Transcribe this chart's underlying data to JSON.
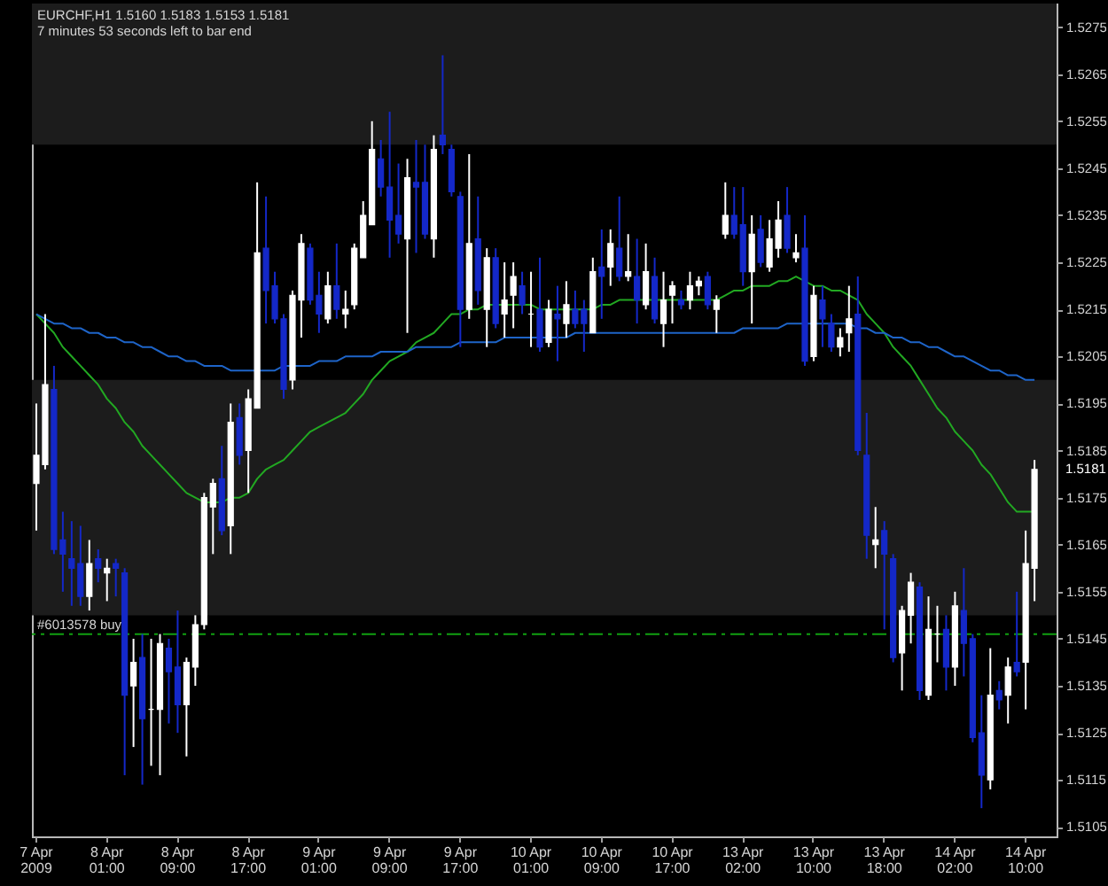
{
  "chart_data": {
    "type": "candlestick",
    "title": "EURCHF,H1  1.5160 1.5183 1.5153 1.5181",
    "subtitle": "7 minutes 53 seconds left to bar end",
    "categories": [
      "7 Apr 2009",
      null,
      null,
      null,
      null,
      null,
      null,
      null,
      "8 Apr 01:00",
      null,
      null,
      null,
      null,
      null,
      null,
      null,
      "8 Apr 09:00",
      null,
      null,
      null,
      null,
      null,
      null,
      null,
      "8 Apr 17:00",
      null,
      null,
      null,
      null,
      null,
      null,
      null,
      "9 Apr 01:00",
      null,
      null,
      null,
      null,
      null,
      null,
      null,
      "9 Apr 09:00",
      null,
      null,
      null,
      null,
      null,
      null,
      null,
      "9 Apr 17:00",
      null,
      null,
      null,
      null,
      null,
      null,
      null,
      "10 Apr 01:00",
      null,
      null,
      null,
      null,
      null,
      null,
      null,
      "10 Apr 09:00",
      null,
      null,
      null,
      null,
      null,
      null,
      null,
      "10 Apr 17:00",
      null,
      null,
      null,
      null,
      null,
      null,
      null,
      "13 Apr 02:00",
      null,
      null,
      null,
      null,
      null,
      null,
      null,
      "13 Apr 10:00",
      null,
      null,
      null,
      null,
      null,
      null,
      null,
      "13 Apr 18:00",
      null,
      null,
      null,
      null,
      null,
      null,
      null,
      "14 Apr 02:00",
      null,
      null,
      null,
      null,
      null,
      null,
      null,
      "14 Apr 10:00",
      null
    ],
    "ohlc": [
      [
        1.5178,
        1.5195,
        1.5168,
        1.5184
      ],
      [
        1.5182,
        1.5214,
        1.5181,
        1.5199
      ],
      [
        1.5198,
        1.5203,
        1.5163,
        1.5164
      ],
      [
        1.5166,
        1.5172,
        1.5155,
        1.5163
      ],
      [
        1.5162,
        1.517,
        1.5152,
        1.516
      ],
      [
        1.5161,
        1.5169,
        1.5152,
        1.5154
      ],
      [
        1.5154,
        1.5166,
        1.5151,
        1.5161
      ],
      [
        1.5162,
        1.5164,
        1.5157,
        1.516
      ],
      [
        1.5159,
        1.5162,
        1.5153,
        1.516
      ],
      [
        1.5161,
        1.5162,
        1.5154,
        1.516
      ],
      [
        1.5159,
        1.516,
        1.5116,
        1.5133
      ],
      [
        1.5135,
        1.5145,
        1.5122,
        1.514
      ],
      [
        1.5141,
        1.5146,
        1.5114,
        1.5128
      ],
      [
        1.513,
        1.5145,
        1.5118,
        1.513
      ],
      [
        1.513,
        1.5146,
        1.5116,
        1.5144
      ],
      [
        1.5143,
        1.5145,
        1.5127,
        1.5138
      ],
      [
        1.5139,
        1.5151,
        1.5125,
        1.5131
      ],
      [
        1.5131,
        1.5141,
        1.512,
        1.514
      ],
      [
        1.5139,
        1.515,
        1.5135,
        1.5148
      ],
      [
        1.5148,
        1.5176,
        1.5147,
        1.5175
      ],
      [
        1.5173,
        1.5179,
        1.5163,
        1.5178
      ],
      [
        1.5179,
        1.5186,
        1.5167,
        1.5168
      ],
      [
        1.5169,
        1.5195,
        1.5163,
        1.5191
      ],
      [
        1.5192,
        1.5195,
        1.5182,
        1.5184
      ],
      [
        1.5185,
        1.5198,
        1.5176,
        1.5196
      ],
      [
        1.5194,
        1.5242,
        1.5194,
        1.5227
      ],
      [
        1.5228,
        1.5239,
        1.5212,
        1.5219
      ],
      [
        1.522,
        1.5223,
        1.5212,
        1.5213
      ],
      [
        1.5213,
        1.5214,
        1.5196,
        1.5198
      ],
      [
        1.52,
        1.5219,
        1.5198,
        1.5218
      ],
      [
        1.5217,
        1.5231,
        1.5209,
        1.5229
      ],
      [
        1.5228,
        1.5229,
        1.5216,
        1.5217
      ],
      [
        1.5218,
        1.5223,
        1.521,
        1.5214
      ],
      [
        1.5213,
        1.5223,
        1.5212,
        1.522
      ],
      [
        1.522,
        1.5229,
        1.5213,
        1.5215
      ],
      [
        1.5214,
        1.5219,
        1.5211,
        1.5215
      ],
      [
        1.5216,
        1.5229,
        1.5215,
        1.5228
      ],
      [
        1.5226,
        1.5238,
        1.5226,
        1.5235
      ],
      [
        1.5233,
        1.5255,
        1.5233,
        1.5249
      ],
      [
        1.5247,
        1.5251,
        1.5239,
        1.5241
      ],
      [
        1.5241,
        1.5257,
        1.5226,
        1.5234
      ],
      [
        1.5235,
        1.5246,
        1.5229,
        1.5231
      ],
      [
        1.523,
        1.5247,
        1.521,
        1.5243
      ],
      [
        1.5242,
        1.5251,
        1.5227,
        1.5241
      ],
      [
        1.5242,
        1.525,
        1.523,
        1.5231
      ],
      [
        1.523,
        1.5252,
        1.5226,
        1.5249
      ],
      [
        1.5252,
        1.5269,
        1.5248,
        1.525
      ],
      [
        1.5249,
        1.525,
        1.5239,
        1.524
      ],
      [
        1.5239,
        1.524,
        1.5207,
        1.5215
      ],
      [
        1.5215,
        1.5248,
        1.5213,
        1.5229
      ],
      [
        1.523,
        1.5239,
        1.5216,
        1.5219
      ],
      [
        1.5215,
        1.5228,
        1.5207,
        1.5226
      ],
      [
        1.5226,
        1.5228,
        1.5211,
        1.5212
      ],
      [
        1.5214,
        1.5225,
        1.5209,
        1.5217
      ],
      [
        1.5218,
        1.5225,
        1.5211,
        1.5222
      ],
      [
        1.522,
        1.5223,
        1.5214,
        1.5216
      ],
      [
        1.5214,
        1.5223,
        1.5207,
        1.5214
      ],
      [
        1.5215,
        1.5226,
        1.5206,
        1.5207
      ],
      [
        1.5208,
        1.5217,
        1.5207,
        1.5215
      ],
      [
        1.5214,
        1.522,
        1.5204,
        1.5213
      ],
      [
        1.5212,
        1.5221,
        1.5209,
        1.5216
      ],
      [
        1.5215,
        1.5219,
        1.5211,
        1.5212
      ],
      [
        1.5215,
        1.5217,
        1.5206,
        1.5212
      ],
      [
        1.521,
        1.5226,
        1.521,
        1.5223
      ],
      [
        1.5224,
        1.5232,
        1.5213,
        1.5222
      ],
      [
        1.5224,
        1.5232,
        1.522,
        1.5229
      ],
      [
        1.5228,
        1.5239,
        1.5221,
        1.5222
      ],
      [
        1.5222,
        1.5231,
        1.5221,
        1.5223
      ],
      [
        1.5222,
        1.523,
        1.5212,
        1.5217
      ],
      [
        1.5216,
        1.5229,
        1.5215,
        1.5223
      ],
      [
        1.5222,
        1.5226,
        1.5212,
        1.5213
      ],
      [
        1.5212,
        1.5223,
        1.5207,
        1.5217
      ],
      [
        1.5218,
        1.5221,
        1.5212,
        1.522
      ],
      [
        1.5217,
        1.5219,
        1.5215,
        1.5216
      ],
      [
        1.5217,
        1.5223,
        1.5215,
        1.522
      ],
      [
        1.522,
        1.5222,
        1.5218,
        1.5221
      ],
      [
        1.5222,
        1.5223,
        1.5215,
        1.5216
      ],
      [
        1.5215,
        1.5218,
        1.521,
        1.5217
      ],
      [
        1.5231,
        1.5242,
        1.523,
        1.5235
      ],
      [
        1.5235,
        1.5241,
        1.523,
        1.5231
      ],
      [
        1.5233,
        1.5241,
        1.522,
        1.5223
      ],
      [
        1.5223,
        1.5235,
        1.5212,
        1.5231
      ],
      [
        1.5232,
        1.5235,
        1.5224,
        1.5225
      ],
      [
        1.5224,
        1.5234,
        1.5223,
        1.523
      ],
      [
        1.5228,
        1.5238,
        1.5226,
        1.5234
      ],
      [
        1.5235,
        1.5241,
        1.5227,
        1.5228
      ],
      [
        1.5226,
        1.5231,
        1.5225,
        1.5227
      ],
      [
        1.5228,
        1.5235,
        1.5203,
        1.5204
      ],
      [
        1.5205,
        1.522,
        1.5204,
        1.5218
      ],
      [
        1.5217,
        1.522,
        1.5207,
        1.5213
      ],
      [
        1.5212,
        1.5214,
        1.5206,
        1.5207
      ],
      [
        1.5207,
        1.5211,
        1.5205,
        1.5209
      ],
      [
        1.521,
        1.522,
        1.5206,
        1.5213
      ],
      [
        1.5214,
        1.5222,
        1.5184,
        1.5185
      ],
      [
        1.5184,
        1.5193,
        1.5162,
        1.5167
      ],
      [
        1.5165,
        1.5173,
        1.516,
        1.5166
      ],
      [
        1.5168,
        1.517,
        1.5147,
        1.5163
      ],
      [
        1.5162,
        1.5163,
        1.514,
        1.5141
      ],
      [
        1.5142,
        1.5152,
        1.5134,
        1.5151
      ],
      [
        1.515,
        1.5159,
        1.5144,
        1.5157
      ],
      [
        1.5156,
        1.5157,
        1.5132,
        1.5134
      ],
      [
        1.5133,
        1.5154,
        1.5132,
        1.5147
      ],
      [
        1.5146,
        1.5152,
        1.514,
        1.5146
      ],
      [
        1.5147,
        1.515,
        1.5134,
        1.5139
      ],
      [
        1.5139,
        1.5155,
        1.5135,
        1.5152
      ],
      [
        1.5151,
        1.516,
        1.5137,
        1.5144
      ],
      [
        1.5145,
        1.5146,
        1.5123,
        1.5124
      ],
      [
        1.5125,
        1.5133,
        1.5109,
        1.5116
      ],
      [
        1.5115,
        1.5143,
        1.5113,
        1.5133
      ],
      [
        1.5134,
        1.5136,
        1.513,
        1.5132
      ],
      [
        1.5133,
        1.5141,
        1.5127,
        1.5139
      ],
      [
        1.514,
        1.5155,
        1.5137,
        1.5138
      ],
      [
        1.514,
        1.5168,
        1.513,
        1.5161
      ],
      [
        1.516,
        1.5183,
        1.5153,
        1.5181
      ]
    ],
    "colors": [
      "#ffffff",
      "#ffffff",
      "#1428c8",
      "#1428c8",
      "#1428c8",
      "#1428c8",
      "#ffffff",
      "#1428c8",
      "#ffffff",
      "#1428c8",
      "#1428c8",
      "#ffffff",
      "#1428c8",
      "#ffffff",
      "#ffffff",
      "#1428c8",
      "#1428c8",
      "#ffffff",
      "#ffffff",
      "#ffffff",
      "#ffffff",
      "#1428c8",
      "#ffffff",
      "#1428c8",
      "#ffffff",
      "#ffffff",
      "#1428c8",
      "#1428c8",
      "#1428c8",
      "#ffffff",
      "#ffffff",
      "#1428c8",
      "#1428c8",
      "#ffffff",
      "#1428c8",
      "#ffffff",
      "#ffffff",
      "#ffffff",
      "#ffffff",
      "#1428c8",
      "#1428c8",
      "#1428c8",
      "#ffffff",
      "#1428c8",
      "#1428c8",
      "#ffffff",
      "#1428c8",
      "#1428c8",
      "#1428c8",
      "#ffffff",
      "#1428c8",
      "#ffffff",
      "#1428c8",
      "#ffffff",
      "#ffffff",
      "#1428c8",
      "#ffffff",
      "#1428c8",
      "#ffffff",
      "#1428c8",
      "#ffffff",
      "#1428c8",
      "#1428c8",
      "#ffffff",
      "#1428c8",
      "#ffffff",
      "#1428c8",
      "#ffffff",
      "#1428c8",
      "#ffffff",
      "#1428c8",
      "#ffffff",
      "#ffffff",
      "#1428c8",
      "#ffffff",
      "#ffffff",
      "#1428c8",
      "#ffffff",
      "#ffffff",
      "#1428c8",
      "#1428c8",
      "#ffffff",
      "#1428c8",
      "#ffffff",
      "#ffffff",
      "#1428c8",
      "#ffffff",
      "#1428c8",
      "#ffffff",
      "#1428c8",
      "#1428c8",
      "#ffffff",
      "#ffffff",
      "#1428c8",
      "#1428c8",
      "#ffffff",
      "#1428c8",
      "#1428c8",
      "#ffffff",
      "#ffffff",
      "#1428c8",
      "#ffffff",
      "#ffffff",
      "#1428c8",
      "#ffffff",
      "#1428c8",
      "#1428c8",
      "#1428c8",
      "#ffffff",
      "#1428c8",
      "#ffffff",
      "#1428c8",
      "#ffffff",
      "#ffffff"
    ],
    "series": [
      {
        "type": "line",
        "color": "#22a822",
        "values": [
          1.5214,
          1.5212,
          1.521,
          1.5207,
          1.5205,
          1.5203,
          1.5201,
          1.5199,
          1.5196,
          1.5194,
          1.5191,
          1.5189,
          1.5186,
          1.5184,
          1.5182,
          1.518,
          1.5178,
          1.5176,
          1.5175,
          1.5174,
          1.5174,
          1.5174,
          1.5175,
          1.5175,
          1.5176,
          1.5179,
          1.5181,
          1.5182,
          1.5183,
          1.5185,
          1.5187,
          1.5189,
          1.519,
          1.5191,
          1.5192,
          1.5193,
          1.5195,
          1.5197,
          1.52,
          1.5202,
          1.5204,
          1.5205,
          1.5206,
          1.5208,
          1.5209,
          1.521,
          1.5212,
          1.5214,
          1.5214,
          1.5215,
          1.5215,
          1.5216,
          1.5216,
          1.5216,
          1.5216,
          1.5216,
          1.5216,
          1.5215,
          1.5215,
          1.5215,
          1.5215,
          1.5215,
          1.5215,
          1.5215,
          1.5216,
          1.5216,
          1.5217,
          1.5217,
          1.5217,
          1.5217,
          1.5217,
          1.5217,
          1.5217,
          1.5217,
          1.5217,
          1.5217,
          1.5217,
          1.5217,
          1.5218,
          1.5219,
          1.5219,
          1.522,
          1.522,
          1.522,
          1.5221,
          1.5221,
          1.5222,
          1.5221,
          1.522,
          1.522,
          1.5219,
          1.5219,
          1.5218,
          1.5217,
          1.5214,
          1.5212,
          1.521,
          1.5207,
          1.5205,
          1.5203,
          1.52,
          1.5197,
          1.5194,
          1.5192,
          1.5189,
          1.5187,
          1.5185,
          1.5182,
          1.518,
          1.5177,
          1.5174,
          1.5172,
          1.5172,
          1.5172
        ]
      },
      {
        "type": "line",
        "color": "#1e64c8",
        "values": [
          1.5214,
          1.5213,
          1.5212,
          1.5212,
          1.5211,
          1.5211,
          1.521,
          1.521,
          1.5209,
          1.5209,
          1.5208,
          1.5208,
          1.5207,
          1.5207,
          1.5206,
          1.5205,
          1.5205,
          1.5204,
          1.5204,
          1.5203,
          1.5203,
          1.5203,
          1.5202,
          1.5202,
          1.5202,
          1.5202,
          1.5202,
          1.5202,
          1.5203,
          1.5203,
          1.5203,
          1.5203,
          1.5204,
          1.5204,
          1.5204,
          1.5205,
          1.5205,
          1.5205,
          1.5205,
          1.5206,
          1.5206,
          1.5206,
          1.5206,
          1.5207,
          1.5207,
          1.5207,
          1.5207,
          1.5207,
          1.5208,
          1.5208,
          1.5208,
          1.5208,
          1.5208,
          1.5209,
          1.5209,
          1.5209,
          1.5209,
          1.5209,
          1.5209,
          1.5209,
          1.5209,
          1.521,
          1.521,
          1.521,
          1.521,
          1.521,
          1.521,
          1.521,
          1.521,
          1.521,
          1.521,
          1.521,
          1.521,
          1.521,
          1.521,
          1.521,
          1.521,
          1.521,
          1.521,
          1.521,
          1.5211,
          1.5211,
          1.5211,
          1.5211,
          1.5211,
          1.5212,
          1.5212,
          1.5212,
          1.5212,
          1.5212,
          1.5212,
          1.5212,
          1.5212,
          1.5211,
          1.5211,
          1.521,
          1.521,
          1.5209,
          1.5209,
          1.5208,
          1.5208,
          1.5207,
          1.5207,
          1.5206,
          1.5205,
          1.5205,
          1.5204,
          1.5203,
          1.5202,
          1.5202,
          1.5201,
          1.5201,
          1.52,
          1.52
        ]
      }
    ],
    "ylim": [
      1.5103,
      1.528
    ],
    "yticks": [
      1.5105,
      1.5115,
      1.5125,
      1.5135,
      1.5145,
      1.5155,
      1.5165,
      1.5175,
      1.5185,
      1.5195,
      1.5205,
      1.5215,
      1.5225,
      1.5235,
      1.5245,
      1.5255,
      1.5265,
      1.5275
    ],
    "bands": [
      {
        "axis": "y",
        "from": 1.515,
        "to": 1.52,
        "color": "#1c1c1c"
      },
      {
        "axis": "y",
        "from": 1.525,
        "to": 1.528,
        "color": "#1c1c1c"
      }
    ],
    "ref_lines": [
      {
        "axis": "y",
        "value": 1.5146,
        "label": "#6013578 buy",
        "color": "#10a010",
        "line_style": "dashed"
      }
    ],
    "annotations": [
      "1.5181"
    ]
  }
}
